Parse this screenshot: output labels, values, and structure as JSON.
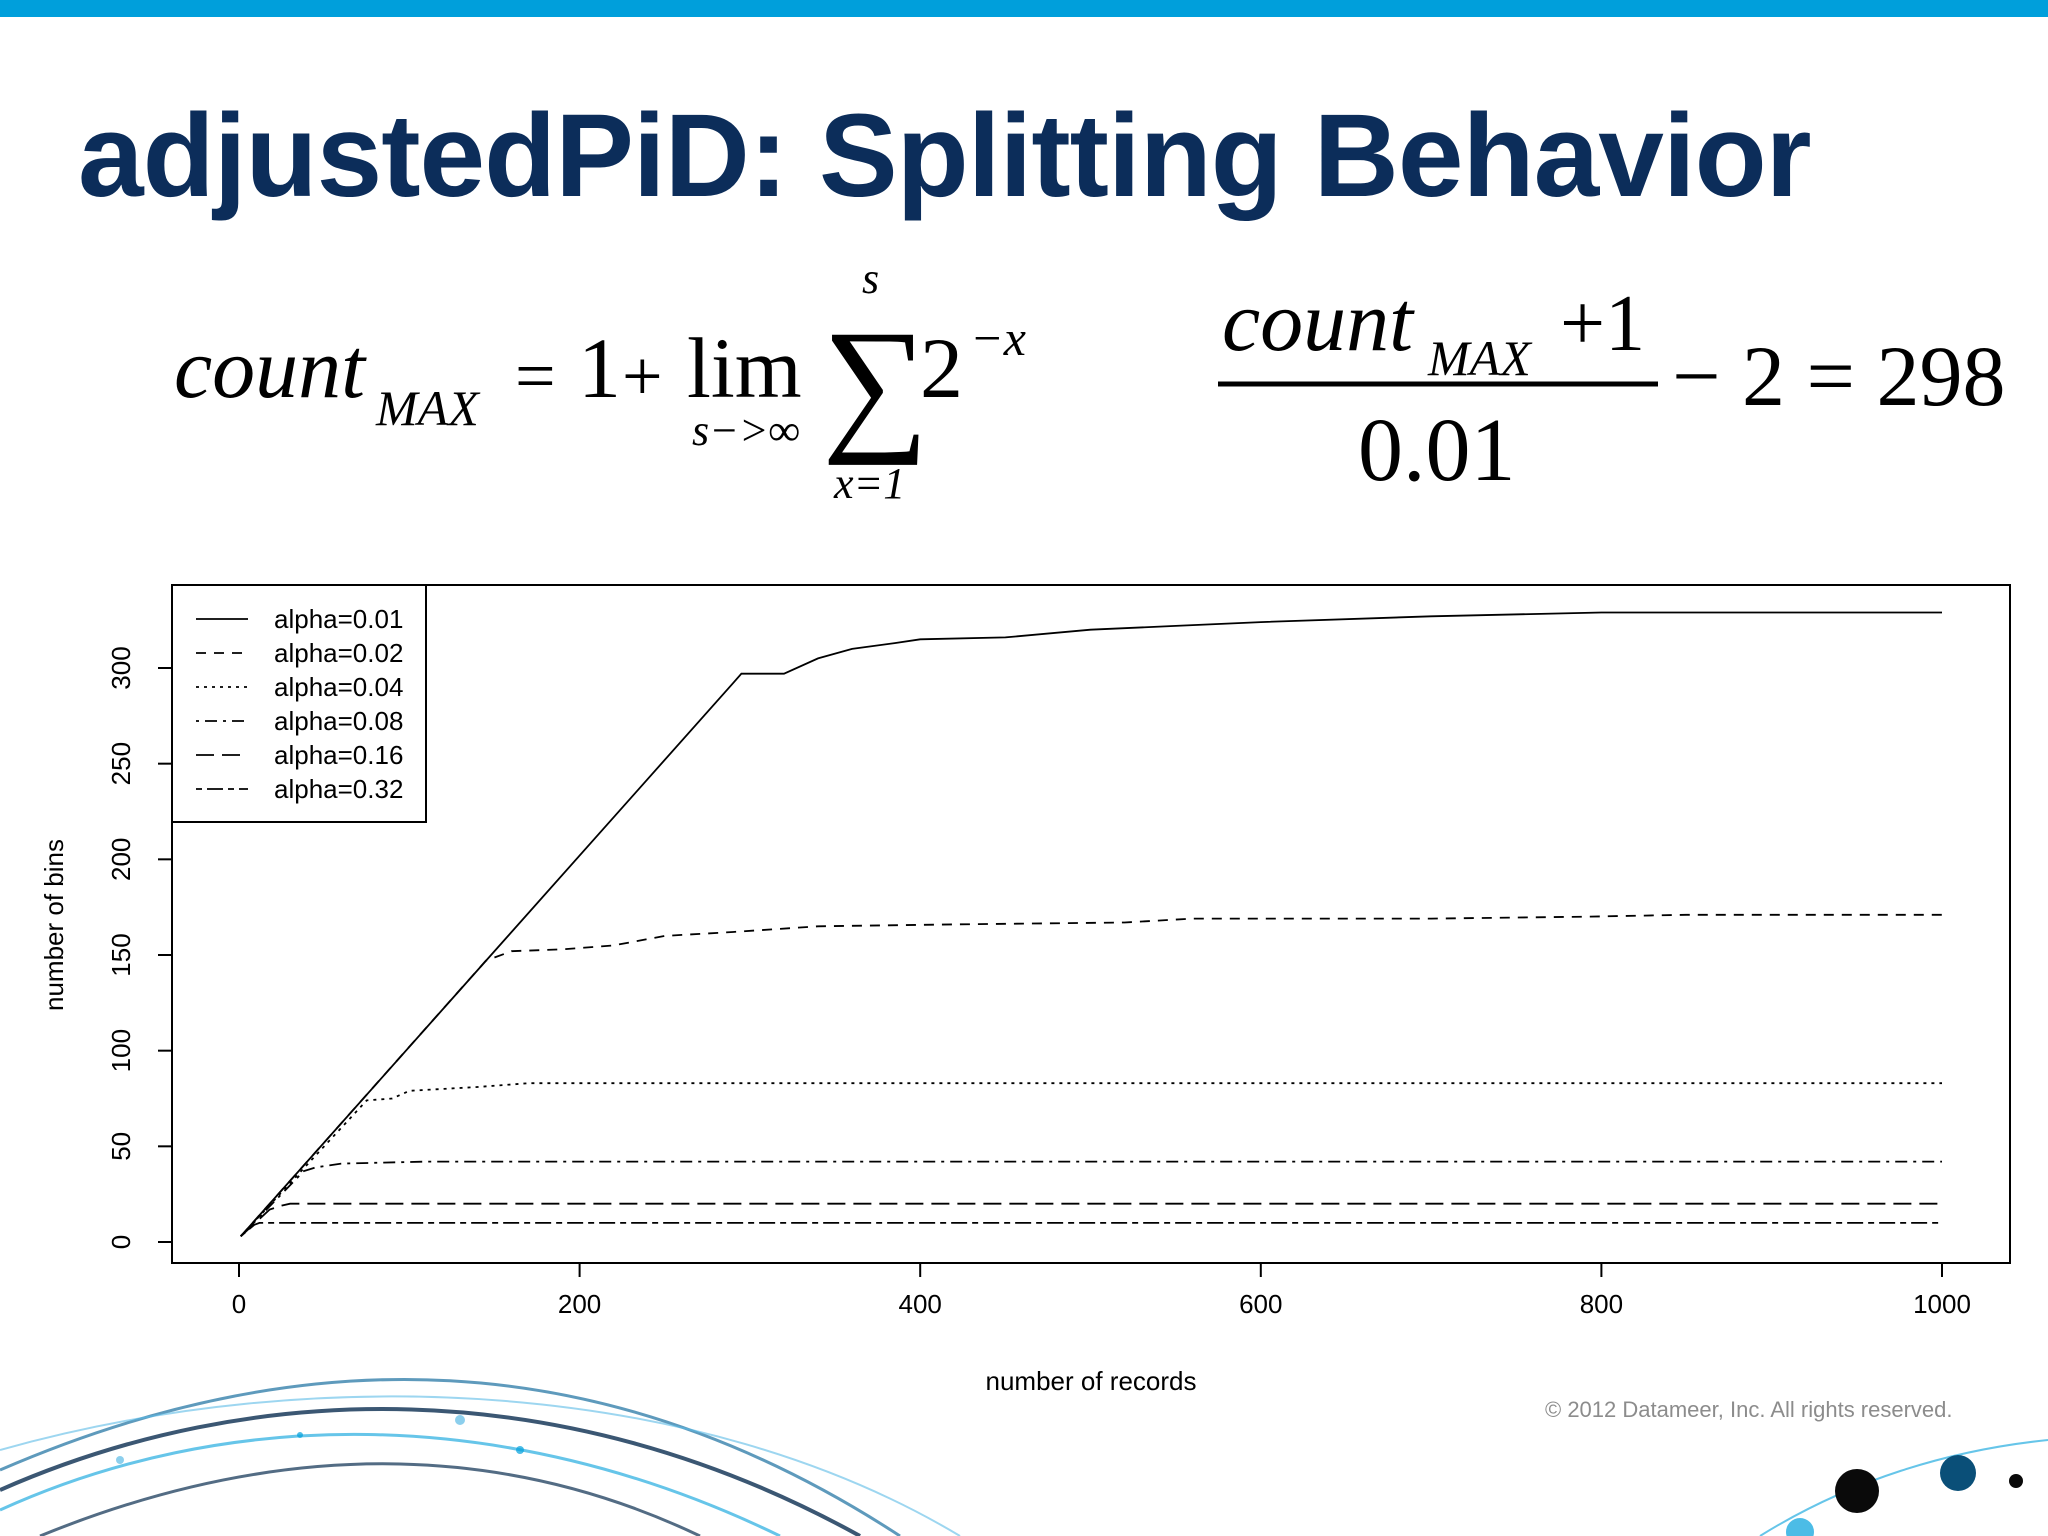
{
  "slide": {
    "title": "adjustedPiD: Splitting Behavior",
    "copyright": "© 2012 Datameer, Inc. All rights reserved.",
    "accent_color": "#009fdb",
    "title_color": "#0c2d5a"
  },
  "formulas": {
    "left": {
      "lhs": "count",
      "lhs_sub": "MAX",
      "eq": "=",
      "one": "1",
      "plus": "+",
      "lim": "lim",
      "lim_sub": "s−>∞",
      "sigma": "∑",
      "sum_upper": "s",
      "sum_lower": "x=1",
      "base": "2",
      "exponent": "−x"
    },
    "right": {
      "num_var": "count",
      "num_sub": "MAX",
      "num_rest": "+1",
      "denominator": "0.01",
      "tail": "− 2 = 298"
    }
  },
  "chart_data": {
    "type": "line",
    "xlabel": "number of records",
    "ylabel": "number of bins",
    "xlim": [
      0,
      1000
    ],
    "ylim": [
      0,
      330
    ],
    "x_ticks": [
      0,
      200,
      400,
      600,
      800,
      1000
    ],
    "y_ticks": [
      0,
      50,
      100,
      150,
      200,
      250,
      300
    ],
    "legend_position": "top-left",
    "grid": false,
    "series": [
      {
        "name": "alpha=0.01",
        "dash": "solid",
        "points": [
          [
            1,
            3
          ],
          [
            290,
            292
          ],
          [
            295,
            297
          ],
          [
            320,
            297
          ],
          [
            340,
            305
          ],
          [
            360,
            310
          ],
          [
            385,
            313
          ],
          [
            400,
            315
          ],
          [
            450,
            316
          ],
          [
            500,
            320
          ],
          [
            550,
            322
          ],
          [
            600,
            324
          ],
          [
            700,
            327
          ],
          [
            800,
            329
          ],
          [
            900,
            329
          ],
          [
            1000,
            329
          ]
        ]
      },
      {
        "name": "alpha=0.02",
        "dash": "dashed",
        "points": [
          [
            1,
            3
          ],
          [
            145,
            147
          ],
          [
            160,
            152
          ],
          [
            190,
            153
          ],
          [
            220,
            155
          ],
          [
            250,
            160
          ],
          [
            290,
            162
          ],
          [
            340,
            165
          ],
          [
            420,
            166
          ],
          [
            520,
            167
          ],
          [
            560,
            169
          ],
          [
            700,
            169
          ],
          [
            790,
            170
          ],
          [
            850,
            171
          ],
          [
            1000,
            171
          ]
        ]
      },
      {
        "name": "alpha=0.04",
        "dash": "dotted",
        "points": [
          [
            1,
            3
          ],
          [
            75,
            74
          ],
          [
            90,
            75
          ],
          [
            100,
            79
          ],
          [
            140,
            81
          ],
          [
            170,
            83
          ],
          [
            1000,
            83
          ]
        ]
      },
      {
        "name": "alpha=0.08",
        "dash": "dotdash",
        "points": [
          [
            1,
            3
          ],
          [
            38,
            37
          ],
          [
            45,
            39
          ],
          [
            60,
            41
          ],
          [
            110,
            42
          ],
          [
            1000,
            42
          ]
        ]
      },
      {
        "name": "alpha=0.16",
        "dash": "longdash",
        "points": [
          [
            1,
            3
          ],
          [
            18,
            17
          ],
          [
            25,
            19
          ],
          [
            30,
            20
          ],
          [
            1000,
            20
          ]
        ]
      },
      {
        "name": "alpha=0.32",
        "dash": "twodash",
        "points": [
          [
            1,
            3
          ],
          [
            9,
            9
          ],
          [
            12,
            10
          ],
          [
            1000,
            10
          ]
        ]
      }
    ]
  }
}
